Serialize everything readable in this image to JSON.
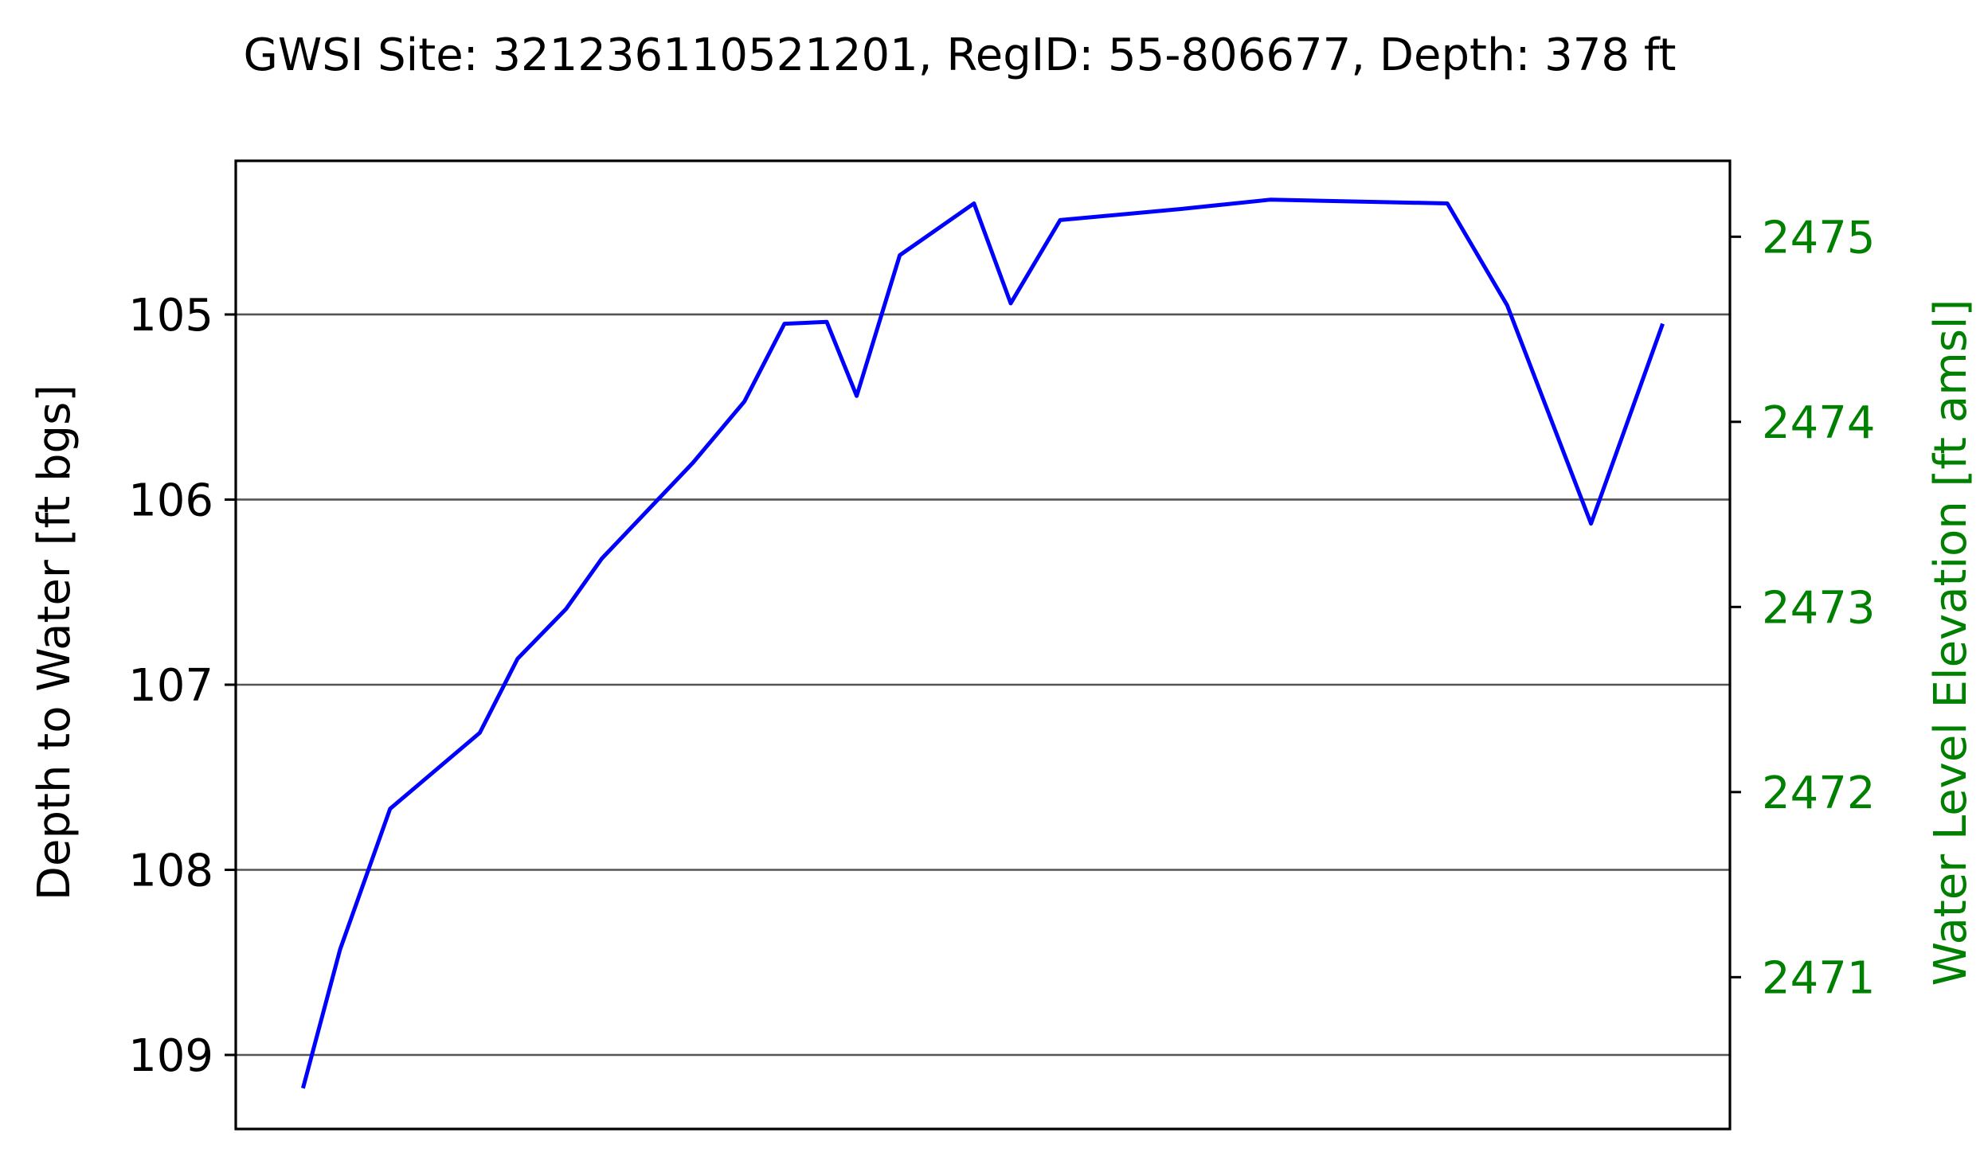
{
  "chart_data": {
    "type": "line",
    "title": "GWSI Site: 321236110521201, RegID: 55-806677, Depth: 378 ft",
    "ylabel_left": "Depth to Water [ft bgs]",
    "ylabel_right": "Water Level Elevation [ft amsl]",
    "yticks_left": [
      "105",
      "106",
      "107",
      "108",
      "109"
    ],
    "yticks_right": [
      "2475",
      "2474",
      "2473",
      "2472",
      "2471"
    ],
    "ylim_left": [
      109.4,
      104.17
    ],
    "ylim_right": [
      2470.18,
      2475.41
    ],
    "left_axis_inverted": true,
    "grid": "horizontal",
    "x_axis_labels": "none",
    "colors": {
      "line": "#0000ff",
      "right_axis": "#008000",
      "grid": "#555555",
      "axes": "#000000"
    },
    "series": [
      {
        "values": [
          109.18,
          108.43,
          107.67,
          107.26,
          106.86,
          106.59,
          106.32,
          105.8,
          105.47,
          105.05,
          105.04,
          105.44,
          104.68,
          104.4,
          104.94,
          104.49,
          104.43,
          104.38,
          104.4,
          104.95,
          106.13,
          105.05
        ]
      }
    ],
    "x": [
      0.0,
      0.0273,
      0.0641,
      0.13,
      0.1578,
      0.1935,
      0.2196,
      0.2869,
      0.3246,
      0.3541,
      0.3852,
      0.4072,
      0.4389,
      0.4935,
      0.5205,
      0.5569,
      0.6456,
      0.7112,
      0.8416,
      0.8856,
      0.9473,
      1.0
    ]
  }
}
